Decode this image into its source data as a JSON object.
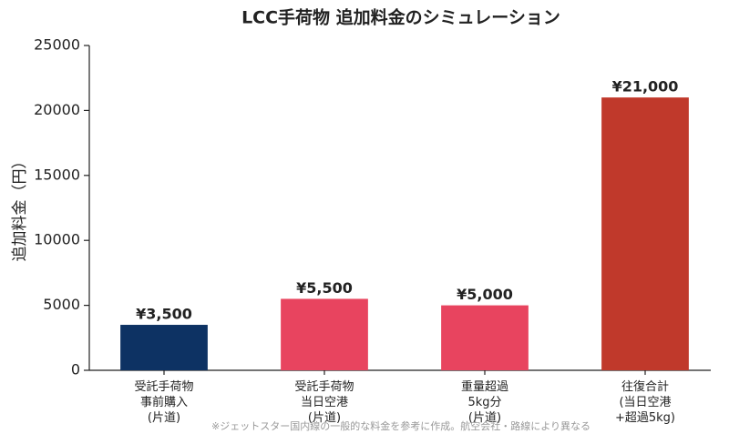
{
  "chart_data": {
    "type": "bar",
    "title": "LCC手荷物 追加料金のシミュレーション",
    "ylabel": "追加料金（円）",
    "categories": [
      "受託手荷物\n事前購入\n(片道)",
      "受託手荷物\n当日空港\n(片道)",
      "重量超過\n5kg分\n(片道)",
      "往復合計\n(当日空港\n+超過5kg)"
    ],
    "values": [
      3500,
      5500,
      5000,
      21000
    ],
    "value_labels": [
      "¥3,500",
      "¥5,500",
      "¥5,000",
      "¥21,000"
    ],
    "colors": [
      "#0d3263",
      "#e8445f",
      "#e8445f",
      "#c0392b"
    ],
    "ylim": [
      0,
      25000
    ],
    "yticks": [
      0,
      5000,
      10000,
      15000,
      20000,
      25000
    ],
    "grid": false,
    "footnote": "※ジェットスター国内線の一般的な料金を参考に作成。航空会社・路線により異なる"
  }
}
